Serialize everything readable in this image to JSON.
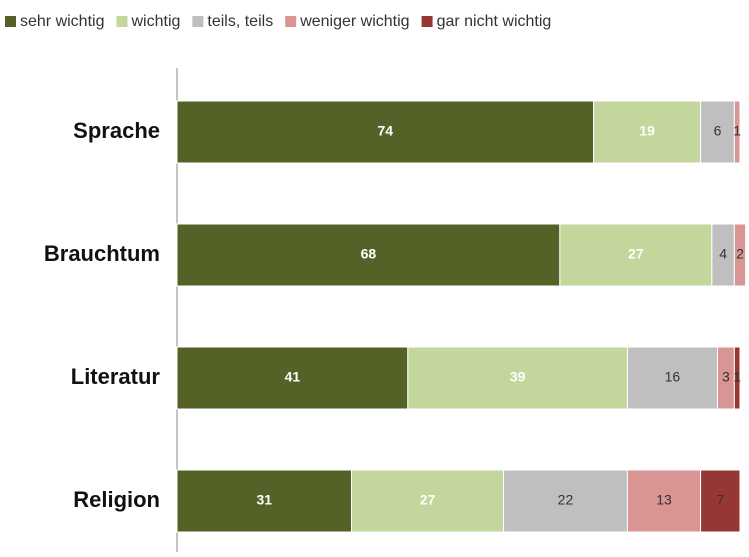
{
  "chart_data": {
    "type": "stacked-bar-horizontal",
    "categories": [
      "Sprache",
      "Brauchtum",
      "Literatur",
      "Religion"
    ],
    "series": [
      {
        "name": "sehr wichtig",
        "color": "#546228",
        "values": [
          74,
          68,
          41,
          31
        ]
      },
      {
        "name": "wichtig",
        "color": "#c3d69b",
        "values": [
          19,
          27,
          39,
          27
        ]
      },
      {
        "name": "teils, teils",
        "color": "#bfbfbf",
        "values": [
          6,
          4,
          16,
          22
        ]
      },
      {
        "name": "weniger wichtig",
        "color": "#d99594",
        "values": [
          1,
          2,
          3,
          13
        ]
      },
      {
        "name": "gar nicht wichtig",
        "color": "#953735",
        "values": [
          0,
          0,
          1,
          7
        ]
      }
    ],
    "xlim": [
      0,
      100
    ],
    "legend": "top"
  }
}
